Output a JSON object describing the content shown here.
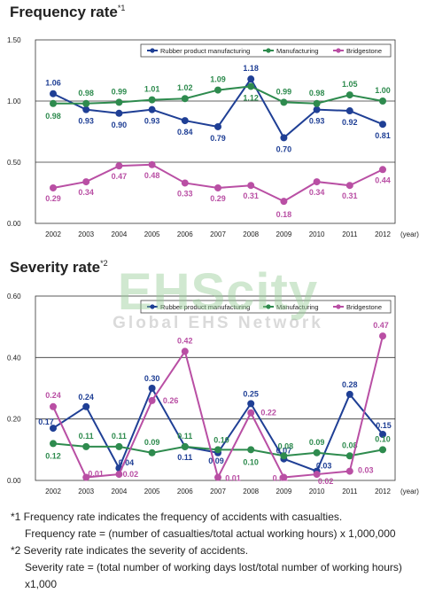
{
  "footnote_marks": {
    "freq": "*1",
    "sev": "*2"
  },
  "watermark": {
    "logo": "EHScity",
    "tagline": "Global EHS Network"
  },
  "notes": [
    "*1 Frequency rate indicates the frequency of accidents with casualties.",
    "Frequency rate = (number of casualties/total actual working hours) x 1,000,000",
    "*2 Severity rate indicates the severity of accidents.",
    "Severity rate = (total number of working days lost/total number of working hours) x1,000"
  ],
  "colors": {
    "rubber": "#1f3f95",
    "manufacturing": "#2e8b4e",
    "bridgestone": "#b94fa4"
  },
  "chart_data": [
    {
      "type": "line",
      "title": "Frequency rate",
      "xlabel": "(year)",
      "x": [
        "2002",
        "2003",
        "2004",
        "2005",
        "2006",
        "2007",
        "2008",
        "2009",
        "2010",
        "2011",
        "2012"
      ],
      "ylim": [
        0,
        1.5
      ],
      "yticks": [
        "0.00",
        "0.50",
        "1.00",
        "1.50"
      ],
      "legend_position": "top-right",
      "series": [
        {
          "name": "Rubber product manufacturing",
          "color": "#1f3f95",
          "values": [
            1.06,
            0.93,
            0.9,
            0.93,
            0.84,
            0.79,
            1.18,
            0.7,
            0.93,
            0.92,
            0.81
          ],
          "labels": [
            "1.06",
            "0.93",
            "0.90",
            "0.93",
            "0.84",
            "0.79",
            "1.18",
            "0.70",
            "0.93",
            "0.92",
            "0.81"
          ]
        },
        {
          "name": "Manufacturing",
          "color": "#2e8b4e",
          "values": [
            0.98,
            0.98,
            0.99,
            1.01,
            1.02,
            1.09,
            1.12,
            0.99,
            0.98,
            1.05,
            1.0
          ],
          "labels": [
            "0.98",
            "0.98",
            "0.99",
            "1.01",
            "1.02",
            "1.09",
            "1.12",
            "0.99",
            "0.98",
            "1.05",
            "1.00"
          ]
        },
        {
          "name": "Bridgestone",
          "color": "#b94fa4",
          "values": [
            0.29,
            0.34,
            0.47,
            0.48,
            0.33,
            0.29,
            0.31,
            0.18,
            0.34,
            0.31,
            0.44
          ],
          "labels": [
            "0.29",
            "0.34",
            "0.47",
            "0.48",
            "0.33",
            "0.29",
            "0.31",
            "0.18",
            "0.34",
            "0.31",
            "0.44"
          ]
        }
      ]
    },
    {
      "type": "line",
      "title": "Severity rate",
      "xlabel": "(year)",
      "x": [
        "2002",
        "2003",
        "2004",
        "2005",
        "2006",
        "2007",
        "2008",
        "2009",
        "2010",
        "2011",
        "2012"
      ],
      "ylim": [
        0,
        0.6
      ],
      "yticks": [
        "0.00",
        "0.20",
        "0.40",
        "0.60"
      ],
      "legend_position": "top-right",
      "series": [
        {
          "name": "Rubber product manufacturing",
          "color": "#1f3f95",
          "values": [
            0.17,
            0.24,
            0.04,
            0.3,
            0.11,
            0.09,
            0.25,
            0.07,
            0.03,
            0.28,
            0.15
          ],
          "labels": [
            "0.17",
            "0.24",
            "0.04",
            "0.30",
            "0.11",
            "0.09",
            "0.25",
            "0.07",
            "0.03",
            "0.28",
            "0.15"
          ]
        },
        {
          "name": "Manufacturing",
          "color": "#2e8b4e",
          "values": [
            0.12,
            0.11,
            0.11,
            0.09,
            0.11,
            0.1,
            0.1,
            0.08,
            0.09,
            0.08,
            0.1
          ],
          "labels": [
            "0.12",
            "0.11",
            "0.11",
            "0.09",
            "0.11",
            "0.10",
            "0.10",
            "0.08",
            "0.09",
            "0.08",
            "0.10"
          ]
        },
        {
          "name": "Bridgestone",
          "color": "#b94fa4",
          "values": [
            0.24,
            0.01,
            0.02,
            0.26,
            0.42,
            0.01,
            0.22,
            0.01,
            0.02,
            0.03,
            0.47
          ],
          "labels": [
            "0.24",
            "0.01",
            "0.02",
            "0.26",
            "0.42",
            "0.01",
            "0.22",
            "0.01",
            "0.02",
            "0.03",
            "0.47"
          ]
        }
      ]
    }
  ]
}
